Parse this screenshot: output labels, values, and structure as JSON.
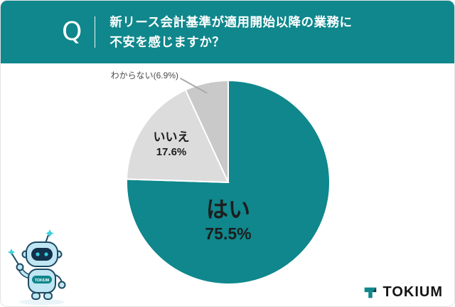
{
  "theme": {
    "accent": "#0F878C"
  },
  "header": {
    "q_mark": "Q",
    "title_line1": "新リース会計基準が適用開始以降の業務に",
    "title_line2": "不安を感じますか？"
  },
  "chart_data": {
    "type": "pie",
    "title": "新リース会計基準が適用開始以降の業務に不安を感じますか？",
    "unit": "%",
    "start_angle_deg": 0,
    "direction": "clockwise",
    "legend": "none",
    "slices": [
      {
        "label": "はい",
        "value": 75.5,
        "pct_label": "75.5%",
        "color": "#0F878C"
      },
      {
        "label": "いいえ",
        "value": 17.6,
        "pct_label": "17.6%",
        "color": "#DCDCDC"
      },
      {
        "label": "わからない",
        "value": 6.9,
        "pct_label": "6.9%",
        "color": "#C9C9C9",
        "callout_label": "わからない(6.9%)"
      }
    ]
  },
  "mascot": {
    "label": "TOKIUM"
  },
  "footer": {
    "logo_text": "TOKIUM"
  }
}
